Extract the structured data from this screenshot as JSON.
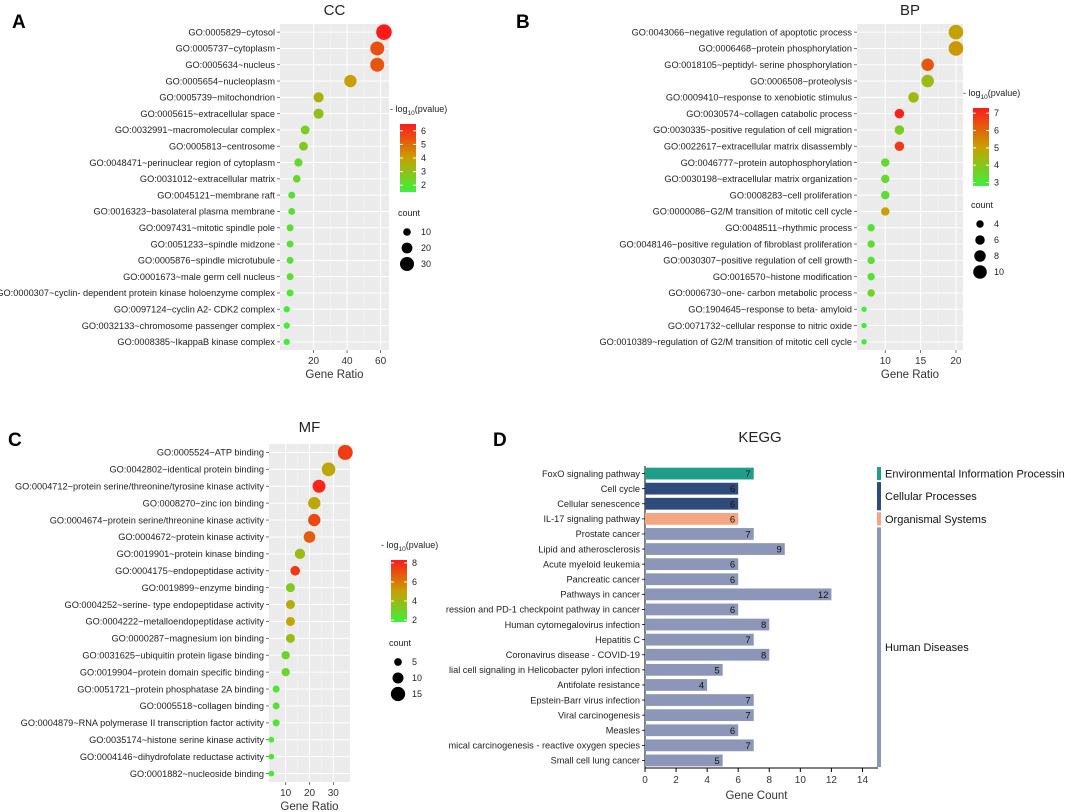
{
  "panels": {
    "a": "A",
    "b": "B",
    "c": "C",
    "d": "D"
  },
  "legend": {
    "color_title_prefix": "- log",
    "color_title_sub": "10",
    "color_title_suffix": "(pvalue)",
    "count_title": "count"
  },
  "colors": {
    "low": "#3cf03c",
    "mid": "#c8a000",
    "high": "#ff1a1a",
    "panel_bg": "#ebebeb",
    "env_info": "#1f9e89",
    "cellular": "#2f4b7c",
    "organismal": "#f4a582",
    "human": "#8c96b8"
  },
  "chart_data": [
    {
      "type": "scatter",
      "id": "cc",
      "title": "CC",
      "xlabel": "Gene Ratio",
      "xlim": [
        0,
        65
      ],
      "xticks": [
        20,
        40,
        60
      ],
      "color_range": [
        1.5,
        6.5
      ],
      "color_ticks": [
        2,
        3,
        4,
        5,
        6
      ],
      "size_range": [
        0,
        35
      ],
      "size_legend": [
        10,
        20,
        30
      ],
      "categories": [
        "GO:0005829~cytosol",
        "GO:0005737~cytoplasm",
        "GO:0005634~nucleus",
        "GO:0005654~nucleoplasm",
        "GO:0005739~mitochondrion",
        "GO:0005615~extracellular space",
        "GO:0032991~macromolecular complex",
        "GO:0005813~centrosome",
        "GO:0048471~perinuclear region of cytoplasm",
        "GO:0031012~extracellular matrix",
        "GO:0045121~membrane raft",
        "GO:0016323~basolateral plasma membrane",
        "GO:0097431~mitotic spindle pole",
        "GO:0051233~spindle midzone",
        "GO:0005876~spindle microtubule",
        "GO:0001673~male germ cell nucleus",
        "GO:0000307~cyclin- dependent protein kinase holoenzyme complex",
        "GO:0097124~cyclin A2- CDK2 complex",
        "GO:0032133~chromosome passenger complex",
        "GO:0008385~IkappaB kinase complex"
      ],
      "x": [
        62,
        58,
        58,
        42,
        23,
        23,
        15,
        14,
        11,
        10,
        7,
        7,
        6,
        6,
        6,
        6,
        6,
        4,
        4,
        4
      ],
      "color": [
        6.5,
        5.5,
        5.4,
        4.0,
        3.5,
        3.0,
        2.6,
        2.7,
        2.2,
        2.3,
        2.0,
        2.0,
        2.0,
        2.0,
        1.9,
        1.9,
        1.8,
        1.7,
        1.7,
        1.6
      ],
      "size": [
        35,
        30,
        30,
        25,
        18,
        18,
        14,
        14,
        12,
        10,
        8,
        8,
        8,
        8,
        8,
        8,
        8,
        6,
        6,
        6
      ]
    },
    {
      "type": "scatter",
      "id": "bp",
      "title": "BP",
      "xlabel": "Gene Ratio",
      "xlim": [
        6,
        21
      ],
      "xticks": [
        10,
        15,
        20
      ],
      "color_range": [
        2.8,
        7.3
      ],
      "color_ticks": [
        3,
        4,
        5,
        6,
        7
      ],
      "size_range": [
        1,
        12
      ],
      "size_legend": [
        4,
        6,
        8,
        10
      ],
      "categories": [
        "GO:0043066~negative regulation of apoptotic process",
        "GO:0006468~protein phosphorylation",
        "GO:0018105~peptidyl- serine phosphorylation",
        "GO:0006508~proteolysis",
        "GO:0009410~response to xenobiotic stimulus",
        "GO:0030574~collagen catabolic process",
        "GO:0030335~positive regulation of cell migration",
        "GO:0022617~extracellular matrix disassembly",
        "GO:0046777~protein autophosphorylation",
        "GO:0030198~extracellular matrix organization",
        "GO:0008283~cell proliferation",
        "GO:0000086~G2/M transition of mitotic cell cycle",
        "GO:0048511~rhythmic process",
        "GO:0048146~positive regulation of fibroblast proliferation",
        "GO:0030307~positive regulation of cell growth",
        "GO:0016570~histone modification",
        "GO:0006730~one- carbon metabolic process",
        "GO:1904645~response to beta- amyloid",
        "GO:0071732~cellular response to nitric oxide",
        "GO:0010389~regulation of G2/M transition of mitotic cell cycle"
      ],
      "x": [
        20,
        20,
        16,
        16,
        14,
        12,
        12,
        12,
        10,
        10,
        10,
        10,
        8,
        8,
        8,
        8,
        8,
        7,
        7,
        7
      ],
      "color": [
        5.0,
        5.2,
        6.3,
        4.3,
        4.4,
        7.2,
        3.8,
        6.8,
        3.4,
        3.4,
        3.3,
        5.0,
        3.2,
        3.4,
        3.2,
        3.1,
        3.6,
        3.0,
        2.9,
        3.0
      ],
      "size": [
        11,
        11,
        9,
        9,
        7,
        6,
        6,
        6,
        5,
        5,
        5,
        5,
        4,
        4,
        4,
        4,
        4,
        2,
        2,
        2
      ]
    },
    {
      "type": "scatter",
      "id": "mf",
      "title": "MF",
      "xlabel": "Gene Ratio",
      "xlim": [
        3,
        37
      ],
      "xticks": [
        10,
        20,
        30
      ],
      "color_range": [
        1.8,
        8.3
      ],
      "color_ticks": [
        2,
        4,
        6,
        8
      ],
      "size_range": [
        0,
        17
      ],
      "size_legend": [
        5,
        10,
        15
      ],
      "categories": [
        "GO:0005524~ATP binding",
        "GO:0042802~identical protein binding",
        "GO:0004712~protein serine/threonine/tyrosine kinase activity",
        "GO:0008270~zinc ion binding",
        "GO:0004674~protein serine/threonine kinase activity",
        "GO:0004672~protein kinase activity",
        "GO:0019901~protein kinase binding",
        "GO:0004175~endopeptidase activity",
        "GO:0019899~enzyme binding",
        "GO:0004252~serine- type endopeptidase activity",
        "GO:0004222~metalloendopeptidase activity",
        "GO:0000287~magnesium ion binding",
        "GO:0031625~ubiquitin protein ligase binding",
        "GO:0019904~protein domain specific binding",
        "GO:0051721~protein phosphatase 2A binding",
        "GO:0005518~collagen binding",
        "GO:0004879~RNA polymerase II transcription factor activity",
        "GO:0035174~histone serine kinase activity",
        "GO:0004146~dihydrofolate reductase activity",
        "GO:0001882~nucleoside binding"
      ],
      "x": [
        35,
        28,
        24,
        22,
        22,
        20,
        16,
        14,
        12,
        12,
        12,
        12,
        10,
        10,
        6,
        6,
        6,
        4,
        4,
        4
      ],
      "color": [
        7.5,
        4.8,
        8.0,
        4.8,
        7.2,
        6.7,
        4.0,
        7.6,
        3.3,
        4.5,
        4.9,
        4.0,
        2.9,
        2.9,
        2.2,
        2.4,
        2.2,
        2.1,
        2.3,
        2.2
      ],
      "size": [
        16,
        14,
        13,
        12,
        12,
        11,
        9,
        8,
        7,
        7,
        7,
        7,
        6,
        6,
        4,
        4,
        4,
        2,
        2,
        2
      ]
    },
    {
      "type": "bar",
      "id": "kegg",
      "title": "KEGG",
      "xlabel": "Gene Count",
      "xlim": [
        0,
        15
      ],
      "xticks": [
        0,
        2,
        4,
        6,
        8,
        10,
        12,
        14
      ],
      "categories": [
        "FoxO signaling pathway",
        "Cell cycle",
        "Cellular senescence",
        "IL-17 signaling pathway",
        "Prostate cancer",
        "Lipid and atherosclerosis",
        "Acute myeloid leukemia",
        "Pancreatic cancer",
        "Pathways in cancer",
        "ression and PD-1 checkpoint pathway in cancer",
        "Human cytomegalovirus infection",
        "Hepatitis C",
        "Coronavirus disease - COVID-19",
        "lial cell signaling in Helicobacter pylori infection",
        "Antifolate resistance",
        "Epstein-Barr virus infection",
        "Viral carcinogenesis",
        "Measles",
        "mical carcinogenesis - reactive oxygen species",
        "Small cell lung cancer"
      ],
      "values": [
        7,
        6,
        6,
        6,
        7,
        9,
        6,
        6,
        12,
        6,
        8,
        7,
        8,
        5,
        4,
        7,
        7,
        6,
        7,
        5
      ],
      "value_labels": [
        "7",
        "6",
        "6",
        "6",
        "7",
        "9",
        "6",
        "6",
        "12",
        "6",
        "8",
        "7",
        "8",
        "5",
        "4",
        "7",
        "7",
        "6",
        "7",
        "5"
      ],
      "groups": [
        "env",
        "cell",
        "cell",
        "org",
        "hum",
        "hum",
        "hum",
        "hum",
        "hum",
        "hum",
        "hum",
        "hum",
        "hum",
        "hum",
        "hum",
        "hum",
        "hum",
        "hum",
        "hum",
        "hum"
      ],
      "group_labels": {
        "env": "Environmental Information Processing",
        "cell": "Cellular Processes",
        "org": "Organismal Systems",
        "hum": "Human Diseases"
      }
    }
  ]
}
